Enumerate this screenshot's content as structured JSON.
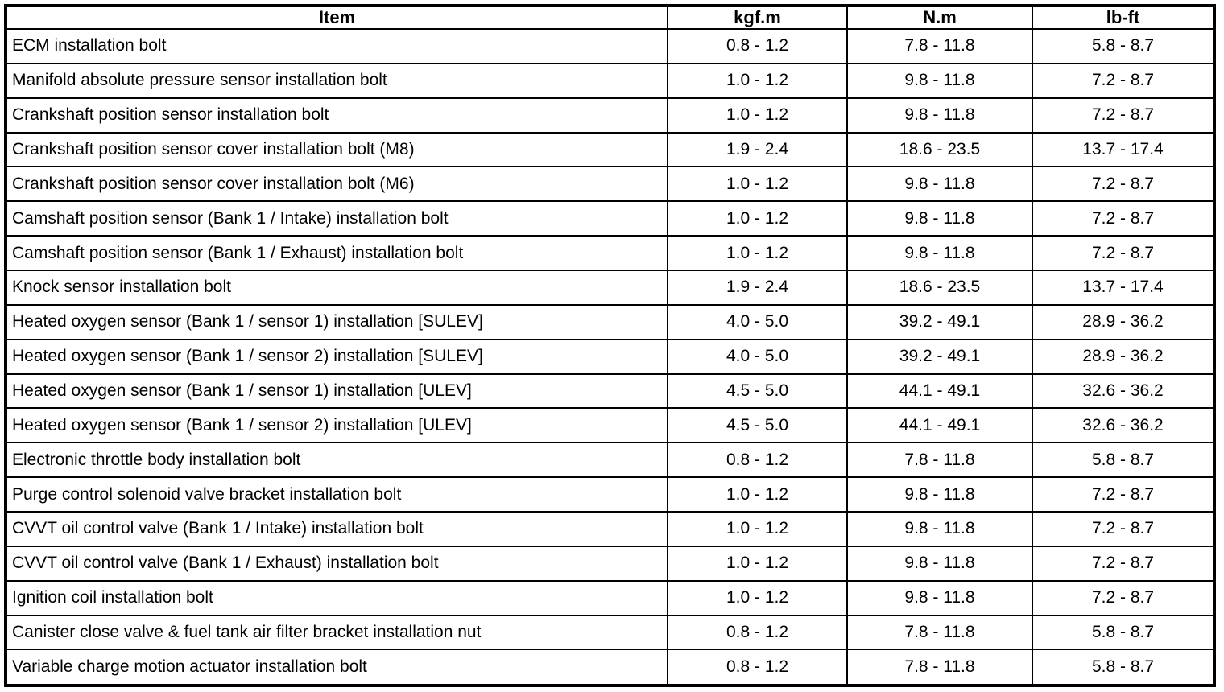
{
  "page": {
    "background_color": "#ffffff",
    "border_color": "#000000",
    "text_color": "#000000"
  },
  "table": {
    "headers": [
      "Item",
      "kgf.m",
      "N.m",
      "lb-ft"
    ],
    "rows": [
      [
        "ECM installation bolt",
        "0.8 - 1.2",
        "7.8 - 11.8",
        "5.8 - 8.7"
      ],
      [
        "Manifold absolute pressure sensor installation bolt",
        "1.0 - 1.2",
        "9.8 - 11.8",
        "7.2 - 8.7"
      ],
      [
        "Crankshaft position sensor installation bolt",
        "1.0 - 1.2",
        "9.8 - 11.8",
        "7.2 - 8.7"
      ],
      [
        "Crankshaft position sensor cover installation bolt (M8)",
        "1.9 - 2.4",
        "18.6 - 23.5",
        "13.7 - 17.4"
      ],
      [
        "Crankshaft position sensor cover installation bolt (M6)",
        "1.0 - 1.2",
        "9.8 - 11.8",
        "7.2 - 8.7"
      ],
      [
        "Camshaft position sensor (Bank 1 / Intake) installation bolt",
        "1.0 - 1.2",
        "9.8 - 11.8",
        "7.2 - 8.7"
      ],
      [
        "Camshaft position sensor (Bank 1 / Exhaust) installation bolt",
        "1.0 - 1.2",
        "9.8 - 11.8",
        "7.2 - 8.7"
      ],
      [
        "Knock sensor installation bolt",
        "1.9 - 2.4",
        "18.6 - 23.5",
        "13.7 - 17.4"
      ],
      [
        "Heated oxygen sensor (Bank 1 / sensor 1) installation [SULEV]",
        "4.0 - 5.0",
        "39.2 - 49.1",
        "28.9 - 36.2"
      ],
      [
        "Heated oxygen sensor (Bank 1 / sensor 2) installation [SULEV]",
        "4.0 - 5.0",
        "39.2 - 49.1",
        "28.9 - 36.2"
      ],
      [
        "Heated oxygen sensor (Bank 1 / sensor 1) installation [ULEV]",
        "4.5 - 5.0",
        "44.1 - 49.1",
        "32.6 - 36.2"
      ],
      [
        "Heated oxygen sensor (Bank 1 / sensor 2) installation [ULEV]",
        "4.5 - 5.0",
        "44.1 - 49.1",
        "32.6 - 36.2"
      ],
      [
        "Electronic throttle body installation bolt",
        "0.8 - 1.2",
        "7.8 - 11.8",
        "5.8 - 8.7"
      ],
      [
        "Purge control solenoid valve bracket installation bolt",
        "1.0 - 1.2",
        "9.8 - 11.8",
        "7.2 - 8.7"
      ],
      [
        "CVVT oil control valve (Bank 1 / Intake) installation bolt",
        "1.0 - 1.2",
        "9.8 - 11.8",
        "7.2 - 8.7"
      ],
      [
        "CVVT oil control valve (Bank 1 / Exhaust) installation bolt",
        "1.0 - 1.2",
        "9.8 - 11.8",
        "7.2 - 8.7"
      ],
      [
        "Ignition coil installation bolt",
        "1.0 - 1.2",
        "9.8 - 11.8",
        "7.2 - 8.7"
      ],
      [
        "Canister close valve & fuel tank air filter bracket installation nut",
        "0.8 - 1.2",
        "7.8 - 11.8",
        "5.8 - 8.7"
      ],
      [
        "Variable charge motion actuator installation bolt",
        "0.8 - 1.2",
        "7.8 - 11.8",
        "5.8 - 8.7"
      ]
    ]
  }
}
